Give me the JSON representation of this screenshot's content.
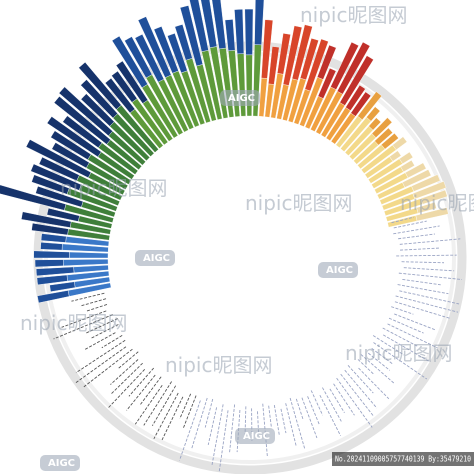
{
  "watermark": {
    "brand": "nipic昵图网",
    "badge": "AIGC"
  },
  "footer": {
    "id": "No.20241109005757740139 By:35479210"
  }
}
